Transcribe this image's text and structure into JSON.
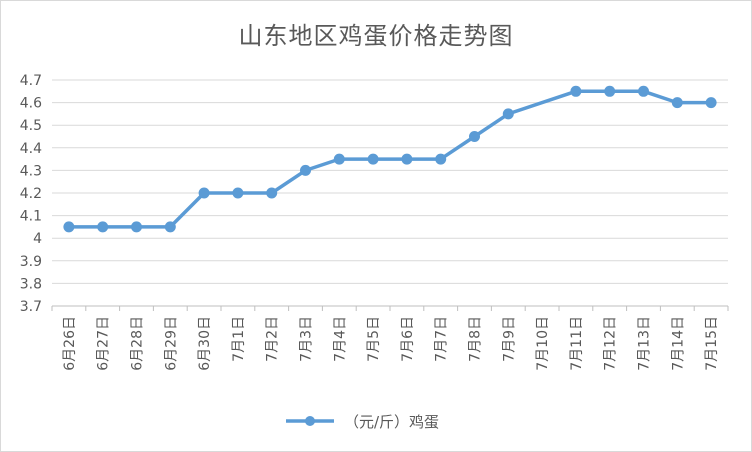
{
  "chart_data": {
    "type": "line",
    "title": "山东地区鸡蛋价格走势图",
    "xlabel": "",
    "ylabel": "",
    "categories": [
      "6月26日",
      "6月27日",
      "6月28日",
      "6月29日",
      "6月30日",
      "7月1日",
      "7月2日",
      "7月3日",
      "7月4日",
      "7月5日",
      "7月6日",
      "7月7日",
      "7月8日",
      "7月9日",
      "7月10日",
      "7月11日",
      "7月12日",
      "7月13日",
      "7月14日",
      "7月15日"
    ],
    "series": [
      {
        "name": "（元/斤）鸡蛋",
        "values": [
          4.05,
          4.05,
          4.05,
          4.05,
          4.2,
          4.2,
          4.2,
          4.3,
          4.35,
          4.35,
          4.35,
          4.35,
          4.45,
          4.55,
          null,
          4.65,
          4.65,
          4.65,
          4.6,
          4.6
        ]
      }
    ],
    "ylim": [
      3.7,
      4.7
    ],
    "yticks": [
      "3.7",
      "3.8",
      "3.9",
      "4",
      "4.1",
      "4.2",
      "4.3",
      "4.4",
      "4.5",
      "4.6",
      "4.7"
    ],
    "grid": true,
    "legend": "bottom",
    "line_color": "#5b9bd5",
    "grid_color": "#d9d9d9"
  }
}
